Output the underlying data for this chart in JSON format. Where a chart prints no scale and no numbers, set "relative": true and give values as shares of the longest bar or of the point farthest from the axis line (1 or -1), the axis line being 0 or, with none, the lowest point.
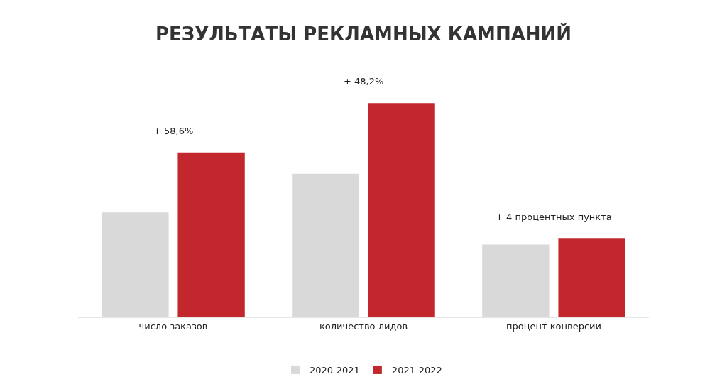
{
  "chart_data": {
    "type": "bar",
    "title": "РЕЗУЛЬТАТЫ РЕКЛАМНЫХ КАМПАНИЙ",
    "relative": true,
    "categories": [
      "число заказов",
      "количество лидов",
      "процент конверсии"
    ],
    "series": [
      {
        "name": "2020-2021",
        "color": "#d9d9d9",
        "values": [
          0.49,
          0.67,
          0.34
        ]
      },
      {
        "name": "2021-2022",
        "color": "#c1272d",
        "values": [
          0.77,
          1,
          0.37
        ]
      }
    ],
    "annotations": [
      "+ 58,6%",
      "+ 48,2%",
      "+ 4 процентных пункта"
    ],
    "legend": "bottom",
    "grid": false
  }
}
